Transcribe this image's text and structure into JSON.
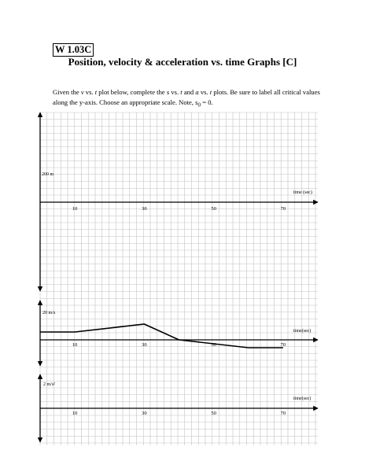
{
  "header": {
    "badge": "W 1.03C",
    "title": "Position, velocity & acceleration vs. time Graphs [C]"
  },
  "instructions": {
    "p1": "Given the ",
    "v": "v",
    "p2": " vs. ",
    "t1": "t",
    "p3": " plot below, complete the ",
    "s": "s",
    "p4": " vs. ",
    "t2": "t",
    "p5": " and ",
    "a": "a",
    "p6": " vs. ",
    "t3": "t",
    "p7": " plots.  Be sure to label all critical values along the y-axis.  Choose an appropriate scale.  Note, s",
    "sub": "0",
    "p8": " = 0."
  },
  "graphs": {
    "position": {
      "y_label": "200 m",
      "time_label": "time (sec)"
    },
    "velocity": {
      "y_label": "20 m/s",
      "time_label": "time(sec)"
    },
    "acceleration": {
      "y_label": "2 m/s²",
      "time_label": "time(sec)"
    }
  },
  "chart_data": {
    "type": "line",
    "x_ticks": [
      "10",
      "30",
      "50",
      "70"
    ],
    "x": [
      0,
      10,
      30,
      40,
      60,
      70
    ],
    "series": [
      {
        "values": [
          10,
          10,
          20,
          0,
          -10,
          -10
        ]
      }
    ],
    "xlabel": "time(sec)",
    "ylabel": "20 m/s",
    "xlim": [
      0,
      80
    ],
    "grid": true
  }
}
